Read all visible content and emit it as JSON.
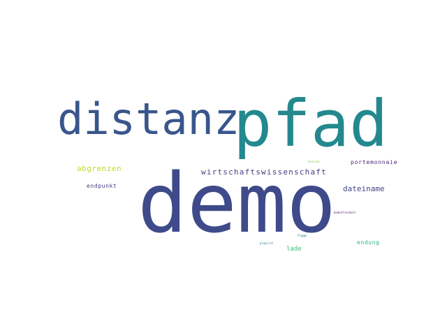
{
  "words": {
    "pfad": {
      "text": "pfad",
      "color": "#23898e"
    },
    "distanz": {
      "text": "distanz",
      "color": "#39568c"
    },
    "demo": {
      "text": "demo",
      "color": "#3e4a89"
    },
    "wirtschaftswissenschaft": {
      "text": "wirtschaftswissenschaft",
      "color": "#433e85"
    },
    "abgrenzen": {
      "text": "abgrenzen",
      "color": "#b8de29"
    },
    "endpunkt": {
      "text": "endpunkt",
      "color": "#453882"
    },
    "portemonnaie": {
      "text": "portemonnaie",
      "color": "#482576"
    },
    "dateiname": {
      "text": "dateiname",
      "color": "#404688"
    },
    "lade": {
      "text": "lade",
      "color": "#3cbb75"
    },
    "endung": {
      "text": "endung",
      "color": "#2db27d"
    },
    "tiny_top": {
      "text": "bonsche",
      "color": "#7ad151"
    },
    "tiny_right": {
      "text": "bodenfreiheit",
      "color": "#481a6c"
    },
    "tiny_mid": {
      "text": "flagge",
      "color": "#2a788e"
    },
    "tiny_left": {
      "text": "playlist",
      "color": "#2c728e"
    }
  },
  "background_color": "#ffffff"
}
